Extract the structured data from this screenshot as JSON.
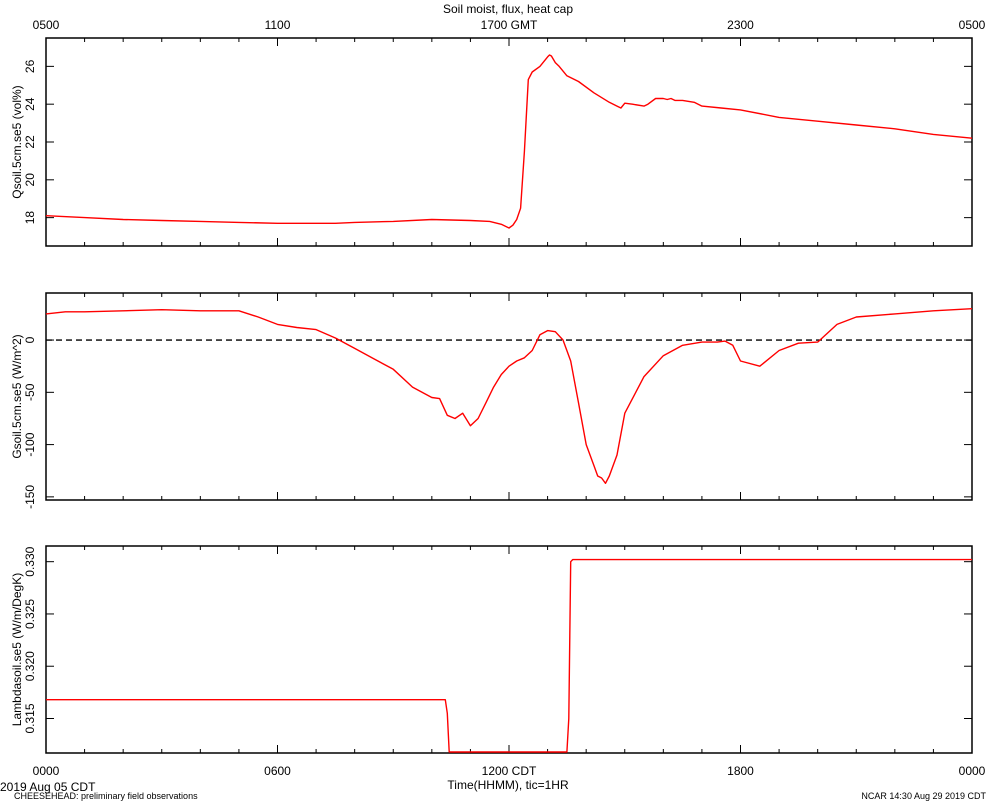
{
  "title": "Soil moist, flux, heat cap",
  "top_axis": {
    "unit_label": "GMT",
    "ticks": [
      "0500",
      "1100",
      "1700 GMT",
      "2300",
      "0500"
    ]
  },
  "bottom_axis": {
    "label": "Time(HHMM), tic=1HR",
    "ticks": [
      "0000",
      "0600",
      "1200 CDT",
      "1800",
      "0000"
    ]
  },
  "footer": {
    "date": "2019 Aug 05 CDT",
    "project": "CHEESEHEAD: preliminary field observations",
    "stamp": "NCAR 14:30 Aug 29 2019 CDT"
  },
  "colors": {
    "series": "#ff0000",
    "axes": "#000000",
    "zero_line": "#000000"
  },
  "chart_data": [
    {
      "type": "line",
      "name": "qsoil",
      "ylabel": "Qsoil.5cm.se5 (vol%)",
      "x_unit": "hours since 0000 CDT",
      "xlim": [
        0,
        24
      ],
      "ylim": [
        16.5,
        27.5
      ],
      "yticks": [
        18,
        20,
        22,
        24,
        26
      ],
      "ytick_labels": [
        "18",
        "20",
        "22",
        "24",
        "26"
      ],
      "x": [
        0,
        1,
        2,
        3,
        4,
        5,
        6,
        7,
        7.5,
        8,
        9,
        10,
        11,
        11.5,
        11.8,
        12,
        12.1,
        12.2,
        12.3,
        12.4,
        12.5,
        12.6,
        12.8,
        13,
        13.05,
        13.1,
        13.2,
        13.3,
        13.5,
        13.8,
        14.2,
        14.6,
        14.8,
        14.9,
        15.0,
        15.2,
        15.5,
        15.6,
        15.8,
        16.0,
        16.1,
        16.2,
        16.3,
        16.5,
        16.8,
        17,
        17.5,
        18,
        19,
        20,
        21,
        22,
        23,
        24
      ],
      "y": [
        18.1,
        18.0,
        17.9,
        17.85,
        17.8,
        17.75,
        17.7,
        17.7,
        17.7,
        17.75,
        17.8,
        17.9,
        17.85,
        17.8,
        17.65,
        17.45,
        17.6,
        17.9,
        18.5,
        21.5,
        25.3,
        25.7,
        26.0,
        26.5,
        26.6,
        26.55,
        26.2,
        26.0,
        25.5,
        25.2,
        24.6,
        24.1,
        23.9,
        23.8,
        24.05,
        24.0,
        23.9,
        24.0,
        24.3,
        24.3,
        24.25,
        24.3,
        24.2,
        24.2,
        24.1,
        23.9,
        23.8,
        23.7,
        23.3,
        23.1,
        22.9,
        22.7,
        22.4,
        22.2
      ]
    },
    {
      "type": "line",
      "name": "gsoil",
      "ylabel": "Gsoil.5cm.se5 (W/m^2)",
      "x_unit": "hours since 0000 CDT",
      "xlim": [
        0,
        24
      ],
      "ylim": [
        -153,
        45
      ],
      "yticks": [
        -150,
        -100,
        -50,
        0
      ],
      "ytick_labels": [
        "-150",
        "-100",
        "-50",
        "0"
      ],
      "zero_line": true,
      "x": [
        0,
        0.5,
        1,
        2,
        3,
        4,
        5,
        5.5,
        6,
        6.5,
        7,
        7.5,
        8,
        8.5,
        9,
        9.5,
        10,
        10.2,
        10.4,
        10.6,
        10.8,
        11,
        11.2,
        11.4,
        11.6,
        11.8,
        12,
        12.2,
        12.4,
        12.6,
        12.8,
        13,
        13.2,
        13.4,
        13.6,
        13.8,
        14.0,
        14.2,
        14.3,
        14.4,
        14.5,
        14.6,
        14.8,
        15,
        15.5,
        16,
        16.5,
        17,
        17.2,
        17.4,
        17.6,
        17.8,
        18,
        18.5,
        19,
        19.5,
        20,
        20.5,
        21,
        22,
        23,
        24
      ],
      "y": [
        25,
        27,
        27,
        28,
        29,
        28,
        28,
        22,
        15,
        12,
        10,
        2,
        -8,
        -18,
        -28,
        -45,
        -55,
        -56,
        -72,
        -75,
        -70,
        -82,
        -75,
        -60,
        -45,
        -33,
        -25,
        -20,
        -17,
        -10,
        5,
        9,
        8,
        0,
        -20,
        -60,
        -100,
        -120,
        -130,
        -132,
        -137,
        -130,
        -110,
        -70,
        -35,
        -15,
        -5,
        -2,
        -2,
        -2,
        -1,
        -5,
        -20,
        -25,
        -10,
        -3,
        -2,
        15,
        22,
        25,
        28,
        30
      ]
    },
    {
      "type": "line",
      "name": "lambdasoil",
      "ylabel": "Lambdasoil.se5 (W/m/DegK)",
      "x_unit": "hours since 0000 CDT",
      "xlim": [
        0,
        24
      ],
      "ylim": [
        0.3117,
        0.3315
      ],
      "yticks": [
        0.315,
        0.32,
        0.325,
        0.33
      ],
      "ytick_labels": [
        "0.315",
        "0.320",
        "0.325",
        "0.330"
      ],
      "x": [
        0,
        10.35,
        10.4,
        10.45,
        10.55,
        13.5,
        13.55,
        13.6,
        13.65,
        24
      ],
      "y": [
        0.3168,
        0.3168,
        0.3155,
        0.3118,
        0.3118,
        0.3118,
        0.315,
        0.33,
        0.3302,
        0.3302
      ]
    }
  ]
}
